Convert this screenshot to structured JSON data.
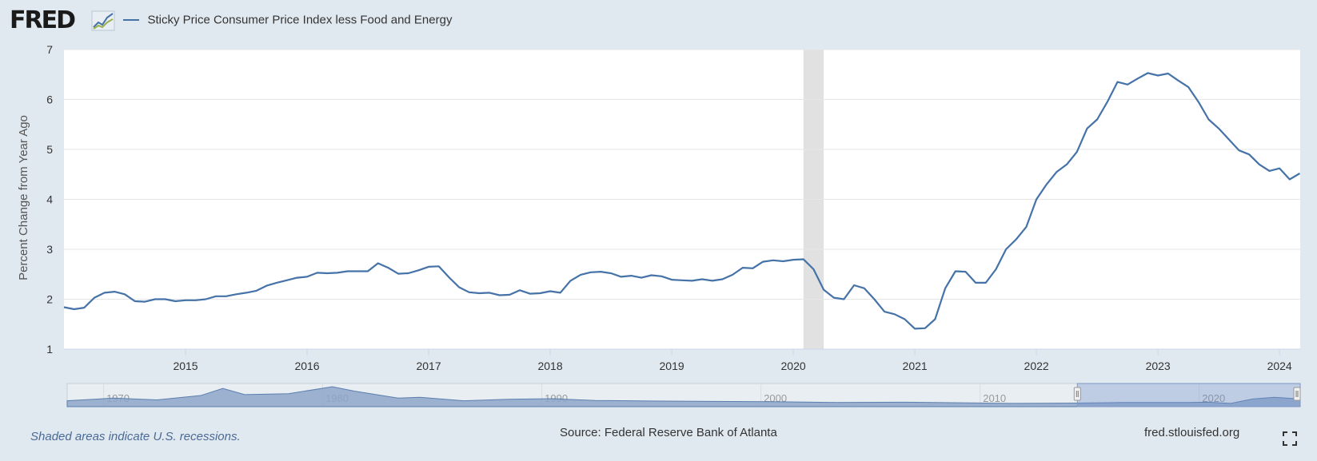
{
  "header": {
    "logo_text": "FRED",
    "legend_label": "Sticky Price Consumer Price Index less Food and Energy"
  },
  "footer": {
    "footnote": "Shaded areas indicate U.S. recessions.",
    "source": "Source: Federal Reserve Bank of Atlanta",
    "site": "fred.stlouisfed.org"
  },
  "icons": {
    "fullscreen": "fullscreen-icon",
    "logo_mark": "chart-logo-icon"
  },
  "chart_data": {
    "type": "line",
    "title": "",
    "xlabel": "",
    "ylabel": "Percent Change from Year Ago",
    "series_color": "#4572a7",
    "x_start": "2014-01",
    "x_end": "2024-03",
    "xlim": [
      2014.0,
      2024.17
    ],
    "ylim": [
      1,
      7
    ],
    "y_ticks": [
      1,
      2,
      3,
      4,
      5,
      6,
      7
    ],
    "x_ticks": [
      "2015",
      "2016",
      "2017",
      "2018",
      "2019",
      "2020",
      "2021",
      "2022",
      "2023",
      "2024"
    ],
    "grid": true,
    "recessions": [
      {
        "start": "2020-02",
        "end": "2020-04"
      }
    ],
    "series": [
      {
        "name": "Sticky Price Consumer Price Index less Food and Energy",
        "frequency": "monthly",
        "values": [
          1.84,
          1.8,
          1.83,
          2.03,
          2.13,
          2.15,
          2.1,
          1.96,
          1.95,
          2.0,
          2.0,
          1.96,
          1.98,
          1.98,
          2.0,
          2.06,
          2.06,
          2.1,
          2.13,
          2.17,
          2.27,
          2.33,
          2.38,
          2.43,
          2.45,
          2.53,
          2.52,
          2.53,
          2.56,
          2.56,
          2.56,
          2.72,
          2.63,
          2.51,
          2.52,
          2.58,
          2.65,
          2.66,
          2.44,
          2.24,
          2.14,
          2.12,
          2.13,
          2.08,
          2.09,
          2.18,
          2.11,
          2.12,
          2.16,
          2.13,
          2.37,
          2.49,
          2.54,
          2.55,
          2.52,
          2.45,
          2.47,
          2.43,
          2.48,
          2.46,
          2.39,
          2.38,
          2.37,
          2.4,
          2.37,
          2.4,
          2.49,
          2.63,
          2.62,
          2.75,
          2.78,
          2.76,
          2.79,
          2.8,
          2.6,
          2.19,
          2.03,
          2.0,
          2.28,
          2.22,
          2.0,
          1.75,
          1.7,
          1.6,
          1.41,
          1.42,
          1.6,
          2.22,
          2.56,
          2.55,
          2.33,
          2.33,
          2.6,
          3.0,
          3.2,
          3.45,
          4.0,
          4.3,
          4.55,
          4.7,
          4.95,
          5.42,
          5.6,
          5.95,
          6.35,
          6.3,
          6.42,
          6.53,
          6.48,
          6.52,
          6.38,
          6.25,
          5.95,
          5.6,
          5.42,
          5.2,
          4.98,
          4.9,
          4.7,
          4.57,
          4.62,
          4.4,
          4.52
        ]
      }
    ],
    "navigator": {
      "x_ticks": [
        "1970",
        "1980",
        "1990",
        "2000",
        "2010",
        "2020"
      ],
      "range_start": 1967.9,
      "range_end": 2024.17,
      "selected_start": 2014.0,
      "selected_end": 2024.17
    }
  }
}
